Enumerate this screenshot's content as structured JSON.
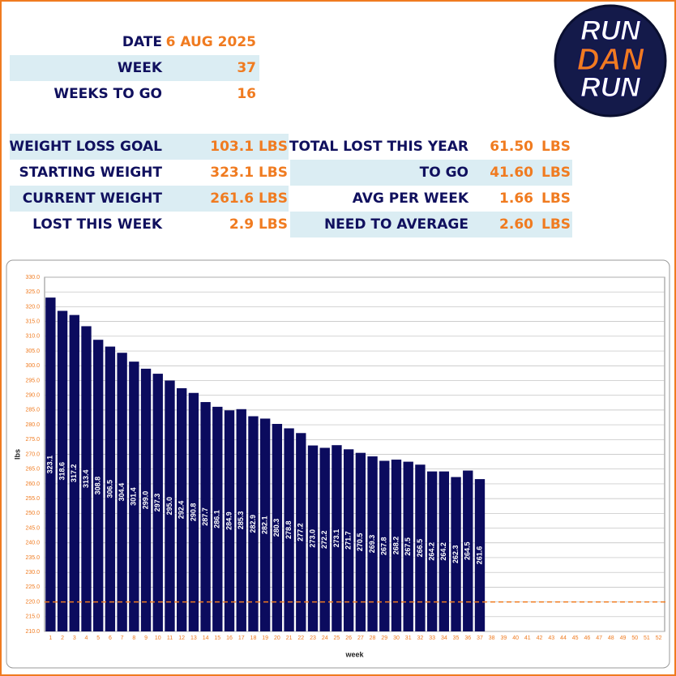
{
  "header": {
    "rows": [
      {
        "label": "DATE",
        "value": "6 AUG 2025"
      },
      {
        "label": "WEEK",
        "value": "37"
      },
      {
        "label": "WEEKS TO GO",
        "value": "16"
      }
    ]
  },
  "logo": [
    "RUN",
    "DAN",
    "RUN"
  ],
  "stats_left": [
    {
      "label": "WEIGHT LOSS GOAL",
      "value": "103.1 LBS"
    },
    {
      "label": "STARTING WEIGHT",
      "value": "323.1 LBS"
    },
    {
      "label": "CURRENT WEIGHT",
      "value": "261.6 LBS"
    },
    {
      "label": "LOST THIS WEEK",
      "value": "2.9 LBS"
    }
  ],
  "stats_right": [
    {
      "label": "TOTAL LOST THIS YEAR",
      "value": "61.50",
      "unit": "LBS"
    },
    {
      "label": "TO GO",
      "value": "41.60",
      "unit": "LBS"
    },
    {
      "label": "AVG PER WEEK",
      "value": "1.66",
      "unit": "LBS"
    },
    {
      "label": "NEED TO AVERAGE",
      "value": "2.60",
      "unit": "LBS"
    }
  ],
  "chart_data": {
    "type": "bar",
    "x_label": "week",
    "y_label": "lbs",
    "color": "#0b0b5e",
    "categories": [
      1,
      2,
      3,
      4,
      5,
      6,
      7,
      8,
      9,
      10,
      11,
      12,
      13,
      14,
      15,
      16,
      17,
      18,
      19,
      20,
      21,
      22,
      23,
      24,
      25,
      26,
      27,
      28,
      29,
      30,
      31,
      32,
      33,
      34,
      35,
      36,
      37,
      38,
      39,
      40,
      41,
      42,
      43,
      44,
      45,
      46,
      47,
      48,
      49,
      50,
      51,
      52
    ],
    "values": [
      323.1,
      318.6,
      317.2,
      313.4,
      308.8,
      306.5,
      304.4,
      301.4,
      299.0,
      297.3,
      295.0,
      292.4,
      290.8,
      287.7,
      286.1,
      284.9,
      285.3,
      282.9,
      282.1,
      280.3,
      278.8,
      277.2,
      273.0,
      272.2,
      273.1,
      271.7,
      270.5,
      269.3,
      267.8,
      268.2,
      267.5,
      266.5,
      264.2,
      264.2,
      262.3,
      264.5,
      261.6,
      null,
      null,
      null,
      null,
      null,
      null,
      null,
      null,
      null,
      null,
      null,
      null,
      null,
      null,
      null
    ],
    "value_labels": [
      "323.1",
      "318.6",
      "317.2",
      "313.4",
      "308.8",
      "306.5",
      "304.4",
      "301.4",
      "299.0",
      "297.3",
      "295.0",
      "292.4",
      "290.8",
      "287.7",
      "286.1",
      "284.9",
      "285.3",
      "282.9",
      "282.1",
      "280.3",
      "278.8",
      "277.2",
      "273.0",
      "272.2",
      "273.1",
      "271.7",
      "270.5",
      "269.3",
      "267.8",
      "268.2",
      "267.5",
      "266.5",
      "264.2",
      "264.2",
      "262.3",
      "264.5",
      "261.6",
      null,
      null,
      null,
      null,
      null,
      null,
      null,
      null,
      null,
      null,
      null,
      null,
      null,
      null,
      null
    ],
    "ylim": [
      210,
      330
    ],
    "yticks": [
      {
        "value": 210,
        "label": "210.0"
      },
      {
        "value": 215,
        "label": "215.0"
      },
      {
        "value": 220,
        "label": "220.0"
      },
      {
        "value": 225,
        "label": "225.0"
      },
      {
        "value": 230,
        "label": "230.0"
      },
      {
        "value": 235,
        "label": "235.0"
      },
      {
        "value": 240,
        "label": "240.0"
      },
      {
        "value": 245,
        "label": "245.0"
      },
      {
        "value": 250,
        "label": "250.0"
      },
      {
        "value": 255,
        "label": "255.0"
      },
      {
        "value": 260,
        "label": "260.0"
      },
      {
        "value": 265,
        "label": "265.0"
      },
      {
        "value": 270,
        "label": "270.0"
      },
      {
        "value": 275,
        "label": "275.0"
      },
      {
        "value": 280,
        "label": "280.0"
      },
      {
        "value": 285,
        "label": "285.0"
      },
      {
        "value": 290,
        "label": "290.0"
      },
      {
        "value": 295,
        "label": "295.0"
      },
      {
        "value": 300,
        "label": "300.0"
      },
      {
        "value": 305,
        "label": "305.0"
      },
      {
        "value": 310,
        "label": "310.0"
      },
      {
        "value": 315,
        "label": "315.0"
      },
      {
        "value": 320,
        "label": "320.0"
      },
      {
        "value": 325,
        "label": "325.0"
      },
      {
        "value": 330,
        "label": "330.0"
      }
    ],
    "grid": true,
    "goal_line": {
      "value": 220,
      "color": "#f07b20"
    }
  }
}
